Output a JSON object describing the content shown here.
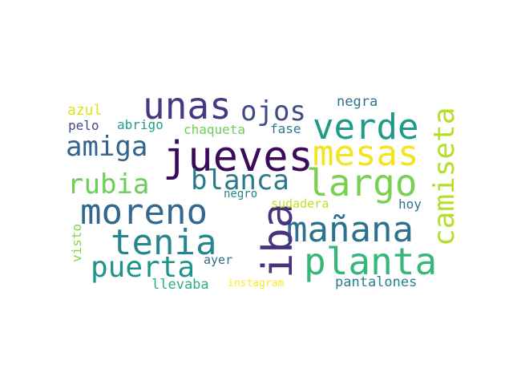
{
  "word_cloud": {
    "words": [
      {
        "text": "jueves",
        "color": "#3b0a5a"
      },
      {
        "text": "unas",
        "color": "#443a83"
      },
      {
        "text": "verde",
        "color": "#1f9a8a"
      },
      {
        "text": "mesas",
        "color": "#f2e51d"
      },
      {
        "text": "ojos",
        "color": "#3e4a89"
      },
      {
        "text": "amiga",
        "color": "#33638d"
      },
      {
        "text": "largo",
        "color": "#7ad151"
      },
      {
        "text": "camiseta",
        "color": "#b5de2b"
      },
      {
        "text": "blanca",
        "color": "#2a788e"
      },
      {
        "text": "rubia",
        "color": "#6ccd5a"
      },
      {
        "text": "moreno",
        "color": "#31688e"
      },
      {
        "text": "mañana",
        "color": "#2c728e"
      },
      {
        "text": "tenia",
        "color": "#24868e"
      },
      {
        "text": "iba",
        "color": "#46327e"
      },
      {
        "text": "planta",
        "color": "#35b779"
      },
      {
        "text": "puerta",
        "color": "#20928c"
      },
      {
        "text": "negra",
        "color": "#2c728e"
      },
      {
        "text": "azul",
        "color": "#dde318"
      },
      {
        "text": "pelo",
        "color": "#3e4a89"
      },
      {
        "text": "abrigo",
        "color": "#1f9e89"
      },
      {
        "text": "chaqueta",
        "color": "#6ece58"
      },
      {
        "text": "fase",
        "color": "#2a788e"
      },
      {
        "text": "negro",
        "color": "#25858e"
      },
      {
        "text": "sudadera",
        "color": "#c2df23"
      },
      {
        "text": "hoy",
        "color": "#2c728e"
      },
      {
        "text": "visto",
        "color": "#86d549"
      },
      {
        "text": "ayer",
        "color": "#31688e"
      },
      {
        "text": "llevaba",
        "color": "#29af7f"
      },
      {
        "text": "instagram",
        "color": "#fde725"
      },
      {
        "text": "pantalones",
        "color": "#287d8e"
      }
    ]
  }
}
